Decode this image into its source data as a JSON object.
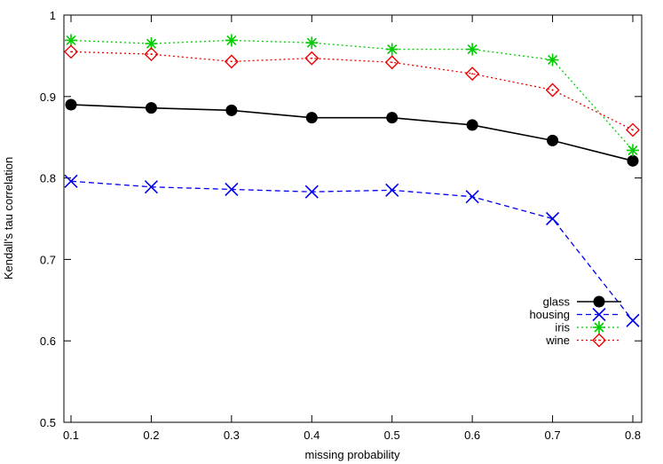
{
  "chart_data": {
    "type": "line",
    "xlabel": "missing probability",
    "ylabel": "Kendall's tau correlation",
    "xlim": [
      0.1,
      0.8
    ],
    "ylim": [
      0.5,
      1.0
    ],
    "x_ticks": [
      "0.1",
      "0.2",
      "0.3",
      "0.4",
      "0.5",
      "0.6",
      "0.7",
      "0.8"
    ],
    "y_ticks": [
      "0.5",
      "0.6",
      "0.7",
      "0.8",
      "0.9",
      "1"
    ],
    "grid": false,
    "legend_position": "right",
    "x": [
      0.1,
      0.2,
      0.3,
      0.4,
      0.5,
      0.6,
      0.7,
      0.8
    ],
    "series": [
      {
        "name": "glass",
        "color": "#000000",
        "marker": "filled-circle",
        "line": "solid",
        "values": [
          0.89,
          0.886,
          0.883,
          0.874,
          0.874,
          0.865,
          0.846,
          0.821
        ]
      },
      {
        "name": "housing",
        "color": "#0000ee",
        "marker": "cross",
        "line": "dashed",
        "values": [
          0.796,
          0.789,
          0.786,
          0.783,
          0.785,
          0.777,
          0.75,
          0.625
        ]
      },
      {
        "name": "iris",
        "color": "#00cc00",
        "marker": "star",
        "line": "dotted",
        "values": [
          0.969,
          0.965,
          0.969,
          0.966,
          0.958,
          0.958,
          0.945,
          0.834
        ]
      },
      {
        "name": "wine",
        "color": "#ee0000",
        "marker": "open-diamond",
        "line": "dotted",
        "values": [
          0.955,
          0.952,
          0.943,
          0.947,
          0.942,
          0.928,
          0.908,
          0.859
        ]
      }
    ]
  }
}
